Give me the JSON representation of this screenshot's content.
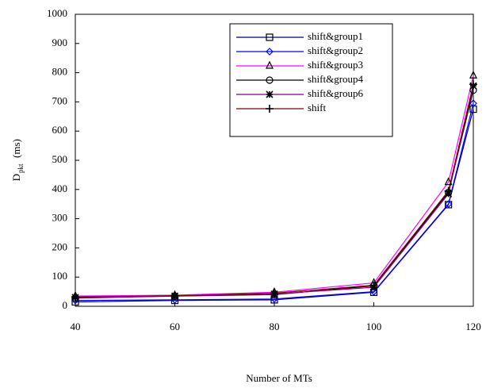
{
  "chart_data": {
    "type": "line",
    "xlabel": "Number of MTs",
    "ylabel": {
      "main": "D",
      "sub": "pkt",
      "unit": "(ms)"
    },
    "x": [
      40,
      60,
      80,
      100,
      115,
      120
    ],
    "xlim": [
      40,
      120
    ],
    "xticks": [
      40,
      60,
      80,
      100,
      120
    ],
    "ylim": [
      0,
      1000
    ],
    "yticks": [
      0,
      100,
      200,
      300,
      400,
      500,
      600,
      700,
      800,
      900,
      1000
    ],
    "legend": "upper-center",
    "series": [
      {
        "name": "shift&group1",
        "color": "#000080",
        "marker": "square",
        "values": [
          15,
          20,
          22,
          48,
          348,
          675
        ]
      },
      {
        "name": "shift&group2",
        "color": "#0000ff",
        "marker": "diamond",
        "values": [
          20,
          22,
          25,
          50,
          350,
          695
        ]
      },
      {
        "name": "shift&group3",
        "color": "#ff00ff",
        "marker": "triangle",
        "values": [
          35,
          38,
          48,
          80,
          425,
          790
        ]
      },
      {
        "name": "shift&group4",
        "color": "#000000",
        "marker": "circle",
        "values": [
          28,
          35,
          40,
          70,
          390,
          740
        ]
      },
      {
        "name": "shift&group6",
        "color": "#800080",
        "marker": "star",
        "values": [
          30,
          35,
          42,
          65,
          385,
          755
        ]
      },
      {
        "name": "shift",
        "color": "#800000",
        "marker": "plus",
        "values": [
          32,
          36,
          45,
          72,
          395,
          760
        ]
      }
    ]
  }
}
